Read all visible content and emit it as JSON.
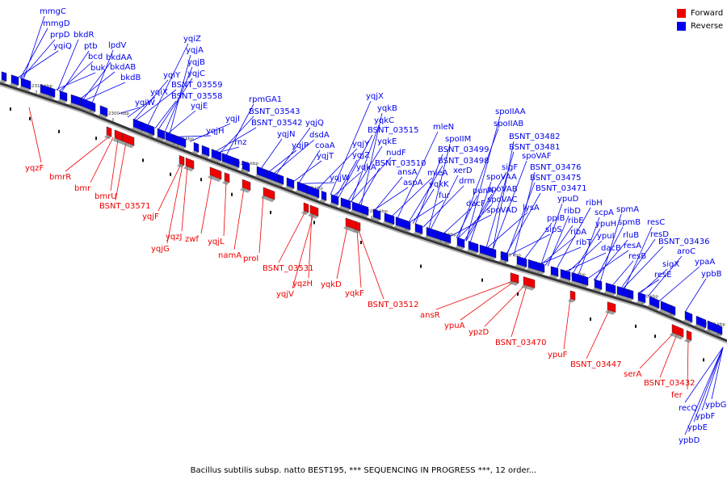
{
  "caption": "Bacillus subtilis subsp. natto BEST195, *** SEQUENCING IN PROGRESS ***, 12 order...",
  "legend": [
    {
      "label": "Forward",
      "color": "#ee0000"
    },
    {
      "label": "Reverse",
      "color": "#0000ee"
    }
  ],
  "colors": {
    "forward": "#ee0000",
    "reverse": "#0000ee",
    "backbone": "#888888"
  },
  "ticks": [
    "2310 kbp",
    "2300 kbp",
    "2290 kbp",
    "2280 kbp",
    "2270 kbp",
    "2260 kbp",
    "2250 kbp",
    "2240 kbp",
    "2230 kbp",
    "2220 kbp",
    "2210 kbp"
  ],
  "reverse_genes": [
    "mmgC",
    "mmgD",
    "prpD",
    "yqiQ",
    "bkdR",
    "ptb",
    "bcd",
    "buk",
    "lpdV",
    "bkdAA",
    "bkdAB",
    "bkdB",
    "yqiW",
    "yqiX",
    "yqiY",
    "yqiZ",
    "yqjA",
    "yqjB",
    "yqjC",
    "BSNT_03559",
    "BSNT_03558",
    "yqjE",
    "yqjH",
    "yqjI",
    "rnz",
    "rpmGA1",
    "BSNT_03543",
    "BSNT_03542",
    "yqjN",
    "yqjP",
    "yqjQ",
    "dsdA",
    "coaA",
    "yqjT",
    "yqjW",
    "yqjX",
    "yqkB",
    "yqkC",
    "BSNT_03515",
    "yqjY",
    "yqjZ",
    "yqkA",
    "yqkE",
    "nudF",
    "BSNT_03510",
    "ansA",
    "aspA",
    "mleN",
    "spoIIM",
    "BSNT_03499",
    "BSNT_03498",
    "mleA",
    "yqkK",
    "xerD",
    "fur",
    "drm",
    "punA",
    "dacF",
    "spoIIAA",
    "spoIIAB",
    "BSNT_03482",
    "BSNT_03481",
    "spoVAF",
    "sigF",
    "spoVAA",
    "spoVAB",
    "spoVAC",
    "spoVAD",
    "BSNT_03476",
    "BSNT_03475",
    "BSNT_03471",
    "lysA",
    "ypuD",
    "ppiB",
    "ribH",
    "sipS",
    "ribD",
    "ribE",
    "ribA",
    "ribT",
    "scpA",
    "ypuH",
    "ypuI",
    "dacB",
    "spmA",
    "spmB",
    "rluB",
    "resA",
    "resB",
    "resC",
    "resD",
    "BSNT_03436",
    "resE",
    "sigX",
    "aroC",
    "ypaA",
    "ypbB",
    "recQ",
    "ypbG",
    "ypbF",
    "ypbE",
    "ypbD"
  ],
  "forward_genes": [
    "yqzF",
    "bmrR",
    "bmr",
    "bmrU",
    "BSNT_03571",
    "yqjF",
    "yqjG",
    "yqzJ",
    "zwf",
    "yqjL",
    "namA",
    "proI",
    "BSNT_03531",
    "yqzH",
    "yqjV",
    "yqkD",
    "yqkF",
    "BSNT_03512",
    "ansR",
    "ypuA",
    "ypzD",
    "BSNT_03470",
    "ypuF",
    "BSNT_03447",
    "serA",
    "BSNT_03432",
    "fer"
  ]
}
